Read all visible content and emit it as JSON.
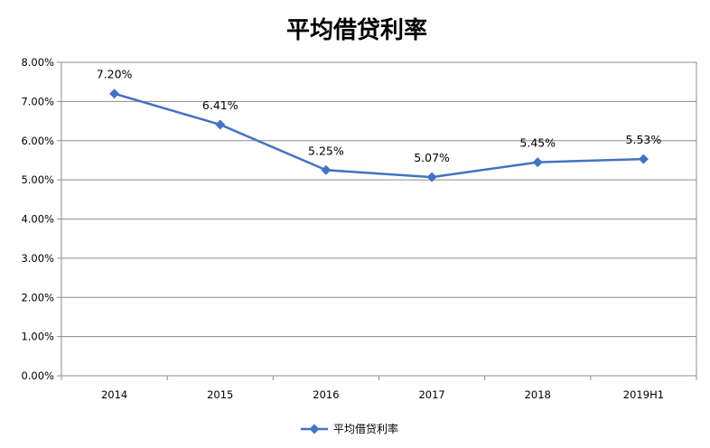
{
  "chart_data": {
    "type": "line",
    "title": "平均借贷利率",
    "categories": [
      "2014",
      "2015",
      "2016",
      "2017",
      "2018",
      "2019H1"
    ],
    "series": [
      {
        "name": "平均借贷利率",
        "values": [
          7.2,
          6.41,
          5.25,
          5.07,
          5.45,
          5.53
        ],
        "data_labels": [
          "7.20%",
          "6.41%",
          "5.25%",
          "5.07%",
          "5.45%",
          "5.53%"
        ],
        "color": "#4472C4",
        "marker": "diamond"
      }
    ],
    "y_ticks": [
      "0.00%",
      "1.00%",
      "2.00%",
      "3.00%",
      "4.00%",
      "5.00%",
      "6.00%",
      "7.00%",
      "8.00%"
    ],
    "ylim": [
      0,
      8
    ],
    "y_step": 1,
    "grid": "horizontal",
    "legend_position": "bottom",
    "xlabel": "",
    "ylabel": ""
  }
}
